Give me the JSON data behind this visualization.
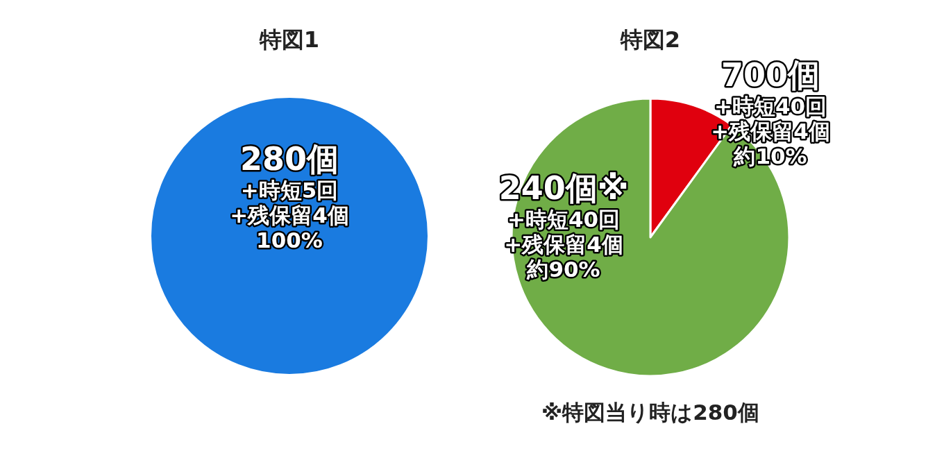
{
  "chart_data": [
    {
      "type": "pie",
      "title": "特図1",
      "categories": [
        "280個\n+時短5回\n+残保留4個"
      ],
      "values": [
        100
      ],
      "colors": [
        "#1a7be0"
      ],
      "value_labels": [
        "100%"
      ]
    },
    {
      "type": "pie",
      "title": "特図2",
      "categories": [
        "700個\n+時短40回\n+残保留4個",
        "240個※\n+時短40回\n+残保留4個"
      ],
      "values": [
        10,
        90
      ],
      "colors": [
        "#e0000e",
        "#70ad47"
      ],
      "value_labels": [
        "約10%",
        "約90%"
      ],
      "annotations": [
        "※特図当り時は280個"
      ]
    }
  ]
}
